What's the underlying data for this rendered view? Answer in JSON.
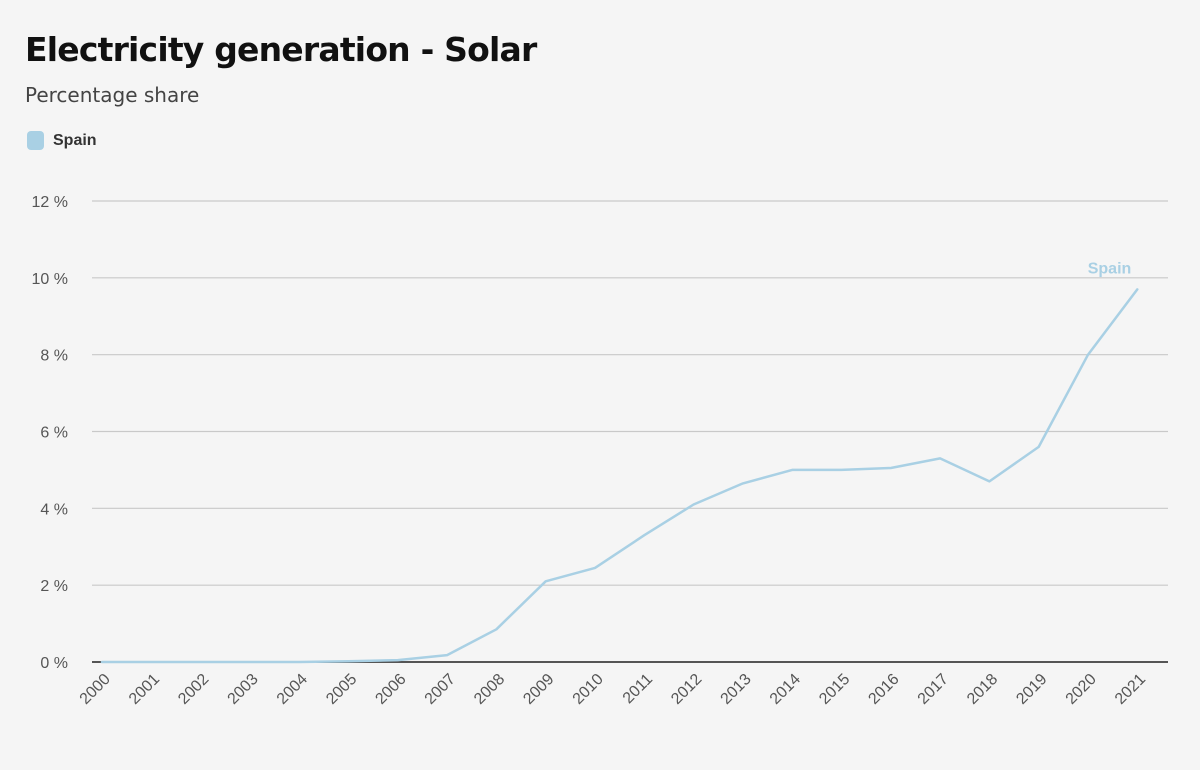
{
  "header": {
    "title": "Electricity generation - Solar",
    "subtitle": "Percentage share"
  },
  "legend": {
    "items": [
      {
        "label": "Spain",
        "color": "#a9d0e4"
      }
    ]
  },
  "chart_data": {
    "type": "line",
    "title": "Electricity generation - Solar",
    "subtitle": "Percentage share",
    "xlabel": "",
    "ylabel": "",
    "x": [
      "2000",
      "2001",
      "2002",
      "2003",
      "2004",
      "2005",
      "2006",
      "2007",
      "2008",
      "2009",
      "2010",
      "2011",
      "2012",
      "2013",
      "2014",
      "2015",
      "2016",
      "2017",
      "2018",
      "2019",
      "2020",
      "2021"
    ],
    "series": [
      {
        "name": "Spain",
        "color": "#a9d0e4",
        "values": [
          0.0,
          0.0,
          0.0,
          0.0,
          0.0,
          0.02,
          0.05,
          0.18,
          0.85,
          2.1,
          2.45,
          3.3,
          4.1,
          4.65,
          5.0,
          5.0,
          5.05,
          5.3,
          4.7,
          5.6,
          8.0,
          9.7
        ]
      }
    ],
    "ylim": [
      0,
      12
    ],
    "yticks": [
      0,
      2,
      4,
      6,
      8,
      10,
      12
    ],
    "ytick_labels": [
      "0 %",
      "2 %",
      "4 %",
      "6 %",
      "8 %",
      "10 %",
      "12 %"
    ],
    "grid": true,
    "legend_position": "top-left",
    "end_label": "Spain"
  }
}
